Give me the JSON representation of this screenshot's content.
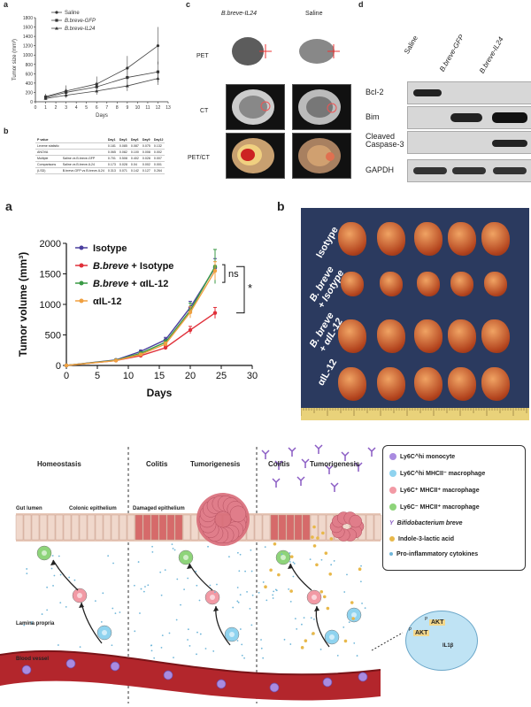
{
  "panel_top_a": {
    "letter": "a",
    "chart_data": {
      "type": "line",
      "xlabel": "Days",
      "ylabel": "Tumor size (mm³)",
      "x": [
        1,
        3,
        6,
        9,
        12
      ],
      "xticks": [
        "0",
        "1",
        "2",
        "3",
        "4",
        "5",
        "6",
        "7",
        "8",
        "9",
        "10",
        "11",
        "12",
        "13"
      ],
      "yticks": [
        "0",
        "200",
        "400",
        "600",
        "800",
        "1000",
        "1200",
        "1400",
        "1600",
        "1800"
      ],
      "ylim": [
        0,
        1800
      ],
      "xlim": [
        0,
        13
      ],
      "series": [
        {
          "name": "Saline",
          "values": [
            110,
            230,
            380,
            720,
            1200
          ],
          "err": [
            60,
            120,
            160,
            260,
            400
          ]
        },
        {
          "name": "B.breve-GFP",
          "values": [
            90,
            200,
            320,
            520,
            640
          ],
          "err": [
            40,
            80,
            120,
            160,
            220
          ]
        },
        {
          "name": "B.breve-IL24",
          "values": [
            70,
            140,
            230,
            340,
            500
          ],
          "err": [
            30,
            60,
            80,
            110,
            140
          ]
        }
      ]
    }
  },
  "panel_top_b": {
    "letter": "b",
    "table": {
      "header": [
        "P value",
        "",
        "Day1",
        "Day3",
        "Day6",
        "Day9",
        "Day12"
      ],
      "rows": [
        [
          "Levene statistic",
          "",
          "0.181",
          "0.085",
          "0.087",
          "0.075",
          "0.132"
        ],
        [
          "ANOVA",
          "",
          "0.065",
          "0.082",
          "0.100",
          "0.008",
          "0.002"
        ],
        [
          "Multiple",
          "Saline vs B.breve-GFP",
          "0.701",
          "0.508",
          "0.402",
          "0.028",
          "0.007"
        ],
        [
          "Comparisons",
          "Saline vs B.breve-IL24",
          "0.173",
          "0.028",
          "0.04",
          "0.002",
          "0.001"
        ],
        [
          "(LSD)",
          "B.breve-GFP vs B.breve-IL24",
          "0.313",
          "0.071",
          "0.142",
          "0.127",
          "0.264"
        ]
      ]
    }
  },
  "panel_c": {
    "letter": "c",
    "col1": "B.breve-IL24",
    "col2": "Saline",
    "rows": [
      "PET",
      "CT",
      "PET/CT"
    ]
  },
  "panel_d": {
    "letter": "d",
    "lanes": [
      "Saline",
      "B.breve-GFP",
      "B.breve-IL24"
    ],
    "bands": [
      "Bcl-2",
      "Bim",
      "Cleaved\nCaspase-3",
      "GAPDH"
    ]
  },
  "panel_mid_a": {
    "letter": "a",
    "chart_data": {
      "type": "line",
      "xlabel": "Days",
      "ylabel": "Tumor volume (mm³)",
      "x": [
        0,
        8,
        12,
        16,
        20,
        24
      ],
      "xticks": [
        "0",
        "5",
        "10",
        "15",
        "20",
        "25",
        "30"
      ],
      "yticks": [
        "0",
        "500",
        "1000",
        "1500",
        "2000"
      ],
      "xlim": [
        0,
        30
      ],
      "ylim": [
        0,
        2000
      ],
      "series": [
        {
          "name": "Isotype",
          "color": "#4b3f9e",
          "values": [
            0,
            90,
            230,
            420,
            950,
            1600
          ],
          "err": [
            0,
            10,
            20,
            40,
            100,
            150
          ]
        },
        {
          "name": "B.breve + Isotype",
          "color": "#e0303a",
          "values": [
            0,
            80,
            160,
            290,
            580,
            860
          ],
          "err": [
            0,
            10,
            20,
            30,
            60,
            90
          ]
        },
        {
          "name": "B.breve + αIL-12",
          "color": "#3a9a45",
          "values": [
            0,
            85,
            200,
            380,
            900,
            1620
          ],
          "err": [
            0,
            10,
            25,
            40,
            120,
            280
          ]
        },
        {
          "name": "αIL-12",
          "color": "#f0a040",
          "values": [
            0,
            80,
            180,
            350,
            870,
            1550
          ],
          "err": [
            0,
            10,
            20,
            35,
            90,
            150
          ]
        }
      ],
      "annotations": [
        "ns",
        "*"
      ]
    }
  },
  "panel_mid_b": {
    "letter": "b",
    "groups": [
      "Isotype",
      "B. breve\n+ Isotype",
      "B. breve\n+ αIL-12",
      "αIL-12"
    ]
  },
  "diagram": {
    "sections": {
      "homeostasis": "Homeostasis",
      "colitis1": "Colitis",
      "tumorigenesis1": "Tumorigenesis",
      "colitis2": "Colitis",
      "tumorigenesis2": "Tumorigenesis"
    },
    "labels": {
      "gut_lumen": "Gut lumen",
      "colonic_epithelium": "Colonic epithelium",
      "damaged_epithelium": "Damaged epithelium",
      "lamina_propria": "Lamina propria",
      "blood_vessel": "Blood vessel"
    },
    "legend": [
      {
        "text": "Ly6C^hi monocyte",
        "color": "#a98be0"
      },
      {
        "text": "Ly6C^hi MHCII⁻ macrophage",
        "color": "#8fd3ef"
      },
      {
        "text": "Ly6C⁺ MHCII⁺ macrophage",
        "color": "#f29aa5"
      },
      {
        "text": "Ly6C⁻ MHCII⁺ macrophage",
        "color": "#8ed47a"
      },
      {
        "text": "Bifidobacterium breve",
        "color": "#8a5cc4"
      },
      {
        "text": "Indole-3-lactic acid",
        "color": "#e8b84a"
      },
      {
        "text": "Pro-inflammatory cytokines",
        "color": "#6fb6d9"
      }
    ],
    "cell_inset": {
      "akt1": "AKT",
      "akt2": "AKT",
      "p": "P",
      "il": "IL1β"
    }
  }
}
